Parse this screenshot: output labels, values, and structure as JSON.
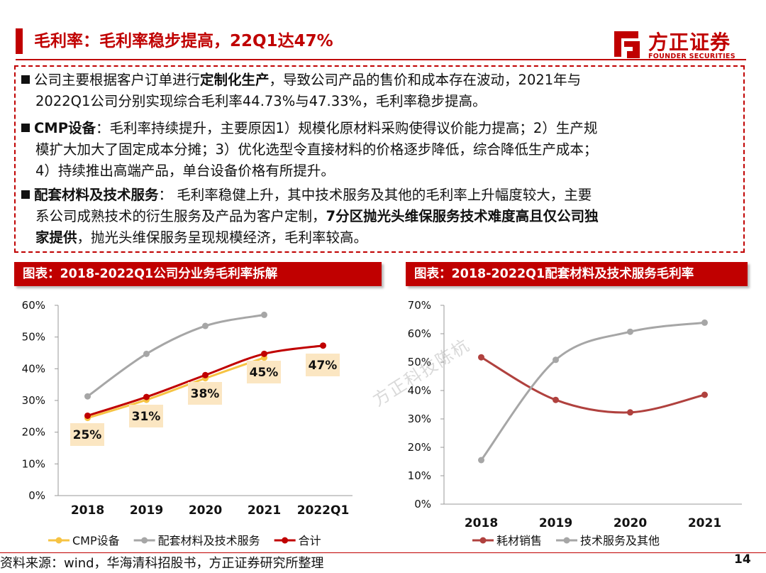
{
  "header": {
    "title": "毛利率：毛利率稳步提高，22Q1达47%",
    "logo_cn": "方正证券",
    "logo_en": "FOUNDER SECURITIES"
  },
  "summary": {
    "p1_a": "公司主要根据客户订单进行",
    "p1_b": "定制化生产",
    "p1_c": "，导致公司产品的售价和成本存在波动，2021年与",
    "p1_line2": "2022Q1公司分别实现综合毛利率44.73%与47.33%，毛利率稳步提高。",
    "p2_a": "CMP设备",
    "p2_b": "：毛利率持续提升，主要原因1）规模化原材料采购使得议价能力提高；2）生产规",
    "p2_line2": "模扩大加大了固定成本分摊；3）优化选型令直接材料的价格逐步降低，综合降低生产成本；",
    "p2_line3": "4）持续推出高端产品，单台设备价格有所提升。",
    "p3_a": "配套材料及技术服务",
    "p3_b": "： 毛利率稳健上升，其中技术服务及其他的毛利率上升幅度较大，主要",
    "p3_line2_a": "系公司成熟技术的衍生服务及产品为客户定制，",
    "p3_line2_b": "7分区抛光头维保服务技术难度高且仅公司独",
    "p3_line3_a": "家提供",
    "p3_line3_b": "，抛光头维保服务呈现规模经济，毛利率较高。"
  },
  "charts": {
    "left_title": "图表：2018-2022Q1公司分业务毛利率拆解",
    "right_title": "图表：2018-2022Q1配套材料及技术服务毛利率"
  },
  "watermark": "方正科技陈杭",
  "footer": {
    "source": "资料来源：wind，华海清科招股书，方正证券研究所整理",
    "page": "14"
  },
  "chart_data": [
    {
      "type": "line",
      "categories": [
        "2018",
        "2019",
        "2020",
        "2021",
        "2022Q1"
      ],
      "ylim": [
        0,
        60
      ],
      "yticks": [
        "0%",
        "10%",
        "20%",
        "30%",
        "40%",
        "50%",
        "60%"
      ],
      "series": [
        {
          "name": "CMP设备",
          "color": "#f6c343",
          "values": [
            24.5,
            30.2,
            37.0,
            43.5,
            null
          ]
        },
        {
          "name": "配套材料及技术服务",
          "color": "#a6a6a6",
          "values": [
            31.3,
            44.7,
            53.5,
            57.0,
            null
          ]
        },
        {
          "name": "合计",
          "color": "#c00000",
          "values": [
            25.2,
            31.1,
            38.0,
            44.7,
            47.3
          ]
        }
      ],
      "data_labels": [
        "25%",
        "31%",
        "38%",
        "45%",
        "47%"
      ],
      "legend": "bottom"
    },
    {
      "type": "line",
      "categories": [
        "2018",
        "2019",
        "2020",
        "2021"
      ],
      "ylim": [
        0,
        70
      ],
      "yticks": [
        "0%",
        "10%",
        "20%",
        "30%",
        "40%",
        "50%",
        "60%",
        "70%"
      ],
      "series": [
        {
          "name": "耗材销售",
          "color": "#b0413e",
          "values": [
            51.7,
            36.7,
            32.3,
            38.5
          ]
        },
        {
          "name": "技术服务及其他",
          "color": "#a6a6a6",
          "values": [
            15.5,
            50.8,
            60.7,
            63.9
          ]
        }
      ],
      "legend": "bottom"
    }
  ]
}
